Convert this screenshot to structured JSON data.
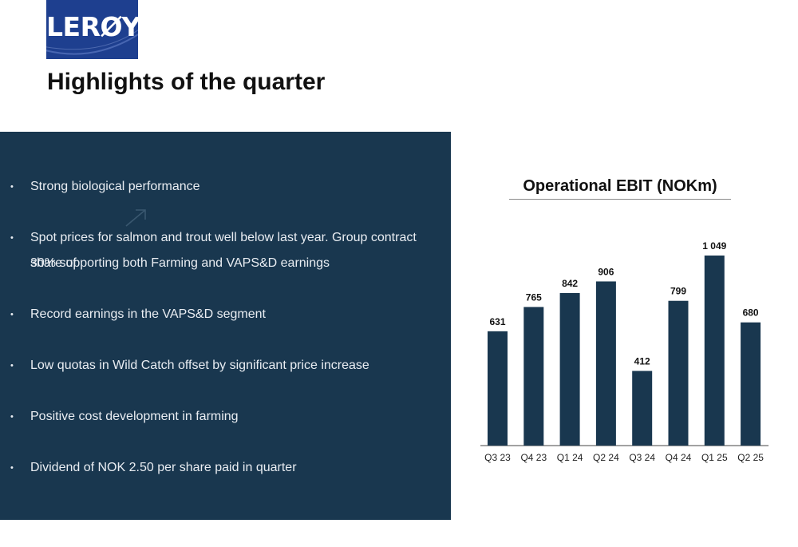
{
  "logo": {
    "text": "LERØY",
    "color": "#1e3f8f"
  },
  "header": {
    "title": "Highlights of the quarter"
  },
  "panel": {
    "color": "#19374f",
    "bullets": [
      {
        "lines": [
          "Strong biological performance"
        ]
      },
      {
        "lines": [
          "Spot prices for salmon and trout well below last year. Group contract share of",
          "30% supporting both Farming and VAPS&D earnings"
        ]
      },
      {
        "lines": [
          "Record earnings in the VAPS&D segment"
        ]
      },
      {
        "lines": [
          "Low quotas in Wild Catch offset by significant price increase"
        ]
      },
      {
        "lines": [
          "Positive cost development in farming"
        ]
      },
      {
        "lines": [
          "Dividend of NOK 2.50 per share paid in quarter"
        ]
      }
    ]
  },
  "chart_data": {
    "type": "bar",
    "title": "Operational EBIT (NOKm)",
    "categories": [
      "Q3 23",
      "Q4 23",
      "Q1 24",
      "Q2 24",
      "Q3 24",
      "Q4 24",
      "Q1 25",
      "Q2 25"
    ],
    "values": [
      631,
      765,
      842,
      906,
      412,
      799,
      1049,
      680
    ],
    "value_labels": [
      "631",
      "765",
      "842",
      "906",
      "412",
      "799",
      "1 049",
      "680"
    ],
    "ylim": [
      0,
      1100
    ],
    "xlabel": "",
    "ylabel": "",
    "grid": false,
    "bar_color": "#19374f"
  }
}
